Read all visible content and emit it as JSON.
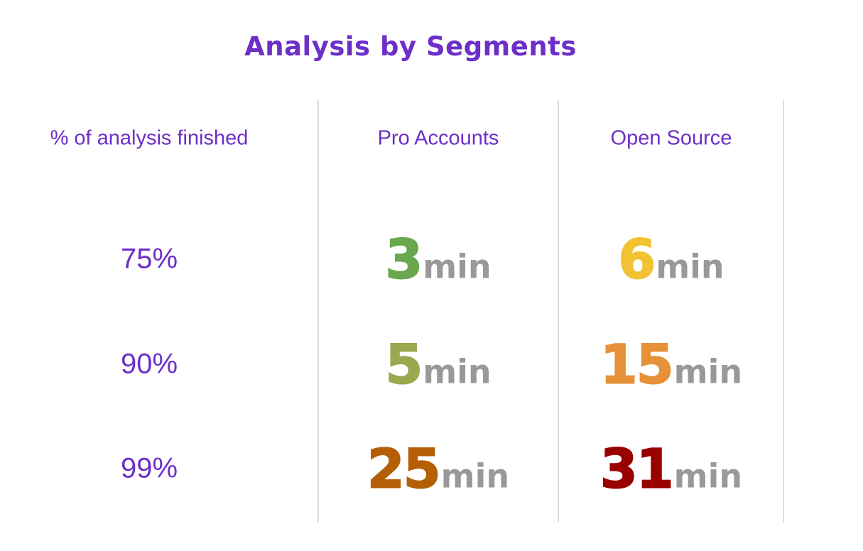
{
  "title": "Analysis by Segments",
  "unit": "min",
  "table": {
    "headers": [
      "% of analysis finished",
      "Pro Accounts",
      "Open Source"
    ],
    "rows": [
      {
        "label": "75%",
        "cells": [
          {
            "value": 3,
            "color": "#6aa84f"
          },
          {
            "value": 6,
            "color": "#f1c232"
          }
        ]
      },
      {
        "label": "90%",
        "cells": [
          {
            "value": 5,
            "color": "#98a94f"
          },
          {
            "value": 15,
            "color": "#e69138"
          }
        ]
      },
      {
        "label": "99%",
        "cells": [
          {
            "value": 25,
            "color": "#b45f06"
          },
          {
            "value": 31,
            "color": "#990000"
          }
        ]
      }
    ]
  }
}
